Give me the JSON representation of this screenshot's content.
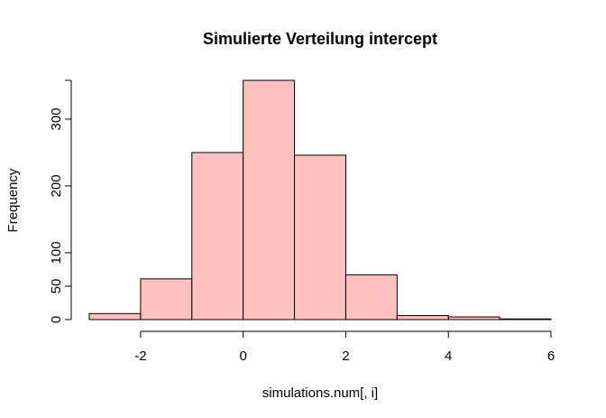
{
  "chart_data": {
    "type": "bar",
    "title": "Simulierte Verteilung intercept",
    "xlabel": "simulations.num[, i]",
    "ylabel": "Frequency",
    "bin_edges": [
      -3,
      -2,
      -1,
      0,
      1,
      2,
      3,
      4,
      5,
      6
    ],
    "values": [
      9,
      61,
      250,
      358,
      246,
      67,
      6,
      4,
      1
    ],
    "xlim": [
      -3,
      6
    ],
    "ylim": [
      0,
      358
    ],
    "x_ticks": [
      "-2",
      "0",
      "2",
      "4",
      "6"
    ],
    "y_ticks": [
      "0",
      "50",
      "100",
      "200",
      "300"
    ],
    "bar_color": "#FFC0C0",
    "grid": false
  }
}
